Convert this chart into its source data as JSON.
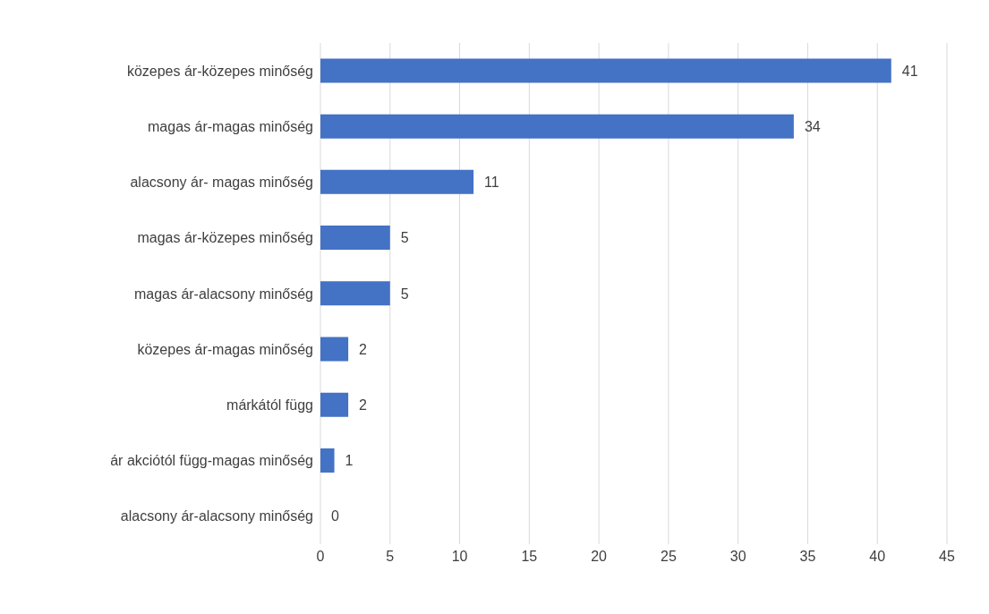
{
  "chart_data": {
    "type": "bar",
    "orientation": "horizontal",
    "categories": [
      "közepes ár-közepes minőség",
      "magas ár-magas minőség",
      "alacsony ár- magas minőség",
      "magas ár-közepes minőség",
      "magas ár-alacsony minőség",
      "közepes ár-magas minőség",
      "márkától függ",
      "ár akciótól függ-magas minőség",
      "alacsony ár-alacsony minőség"
    ],
    "values": [
      41,
      34,
      11,
      5,
      5,
      2,
      2,
      1,
      0
    ],
    "color": "#4472c4",
    "xlim": [
      0,
      45
    ],
    "xticks": [
      0,
      5,
      10,
      15,
      20,
      25,
      30,
      35,
      40,
      45
    ],
    "grid": "x",
    "data_labels": true
  }
}
